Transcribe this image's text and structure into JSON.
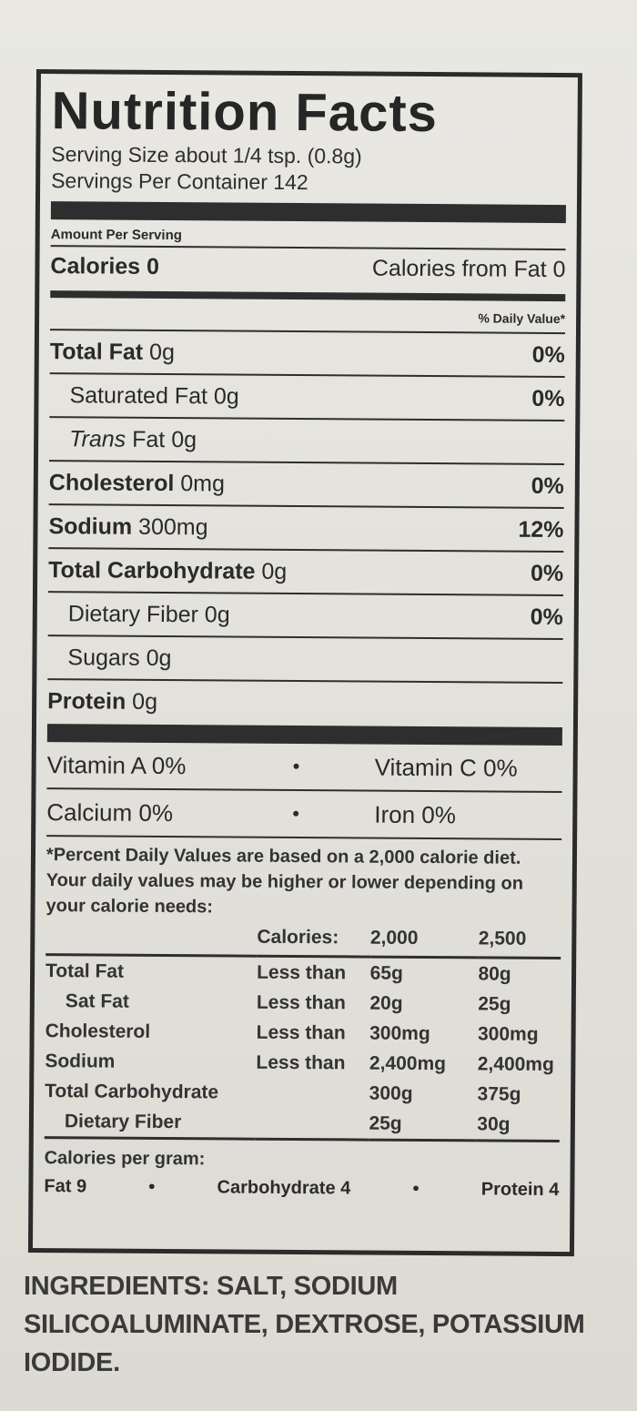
{
  "title": "Nutrition Facts",
  "serving_size": "Serving Size about 1/4 tsp. (0.8g)",
  "servings_per_container": "Servings Per Container 142",
  "amount_per_serving": "Amount Per Serving",
  "calories": "Calories 0",
  "calories_from_fat": "Calories from Fat 0",
  "daily_value_header": "% Daily Value*",
  "nutrients": [
    {
      "name": "Total Fat",
      "amount": " 0g",
      "pct": "0%"
    },
    {
      "name": "Saturated Fat",
      "amount": " 0g",
      "pct": "0%"
    },
    {
      "name_italic": "Trans",
      "name": " Fat",
      "amount": " 0g",
      "pct": ""
    },
    {
      "name": "Cholesterol",
      "amount": " 0mg",
      "pct": "0%"
    },
    {
      "name": "Sodium",
      "amount": " 300mg",
      "pct": "12%"
    },
    {
      "name": "Total Carbohydrate",
      "amount": " 0g",
      "pct": "0%"
    },
    {
      "name": "Dietary Fiber",
      "amount": " 0g",
      "pct": "0%"
    },
    {
      "name": "Sugars",
      "amount": " 0g",
      "pct": ""
    },
    {
      "name": "Protein",
      "amount": " 0g",
      "pct": ""
    }
  ],
  "vitamins": [
    {
      "left": "Vitamin A 0%",
      "right": "Vitamin C 0%"
    },
    {
      "left": "Calcium 0%",
      "right": "Iron 0%"
    }
  ],
  "bullet": "•",
  "footnote": "*Percent Daily Values are based on a 2,000 calorie diet. Your daily values may be higher or lower depending on your calorie needs:",
  "dv_table": {
    "header": [
      "",
      "Calories:",
      "2,000",
      "2,500"
    ],
    "rows": [
      [
        "Total Fat",
        "Less than",
        "65g",
        "80g"
      ],
      [
        "Sat Fat",
        "Less than",
        "20g",
        "25g"
      ],
      [
        "Cholesterol",
        "Less than",
        "300mg",
        "300mg"
      ],
      [
        "Sodium",
        "Less than",
        "2,400mg",
        "2,400mg"
      ],
      [
        "Total Carbohydrate",
        "",
        "300g",
        "375g"
      ],
      [
        "Dietary Fiber",
        "",
        "25g",
        "30g"
      ]
    ]
  },
  "calories_per_gram": "Calories per gram:",
  "cpg_items": [
    "Fat 9",
    "Carbohydrate 4",
    "Protein 4"
  ],
  "ingredients": "INGREDIENTS: SALT, SODIUM SILICOALUMINATE, DEXTROSE, POTASSIUM IODIDE."
}
